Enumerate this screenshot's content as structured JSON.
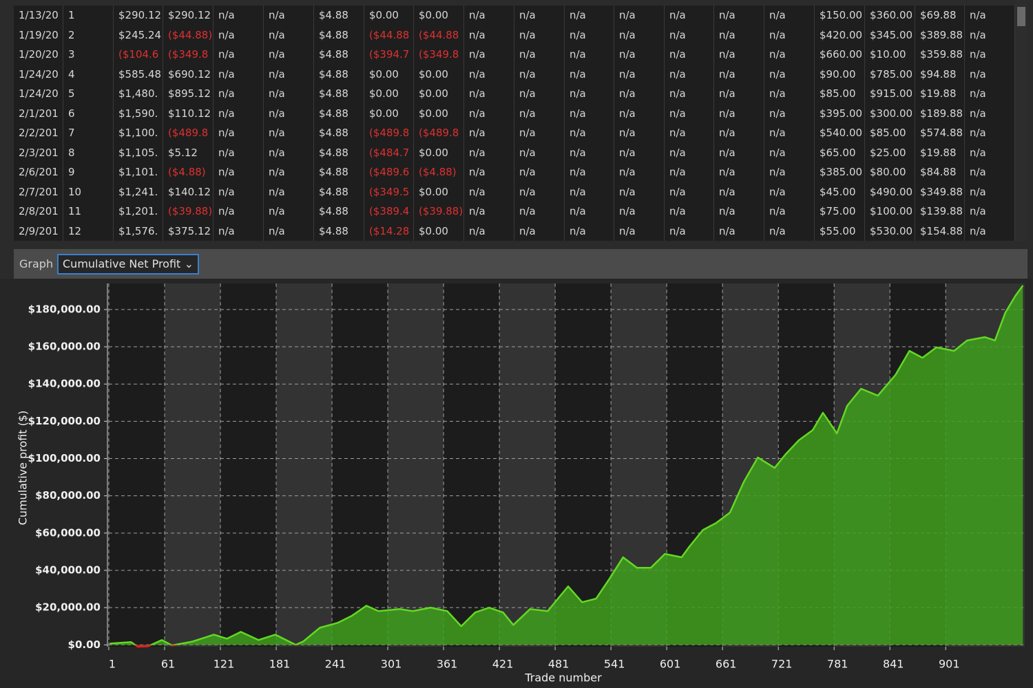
{
  "table": {
    "rows": [
      [
        "1/13/20",
        "1",
        "$290.12",
        "$290.12",
        "n/a",
        "n/a",
        "$4.88",
        "$0.00",
        "$0.00",
        "n/a",
        "n/a",
        "n/a",
        "n/a",
        "n/a",
        "n/a",
        "n/a",
        "$150.00",
        "$360.00",
        "$69.88",
        "n/a"
      ],
      [
        "1/19/20",
        "2",
        "$245.24",
        "($44.88)",
        "n/a",
        "n/a",
        "$4.88",
        "($44.88",
        "($44.88",
        "n/a",
        "n/a",
        "n/a",
        "n/a",
        "n/a",
        "n/a",
        "n/a",
        "$420.00",
        "$345.00",
        "$389.88",
        "n/a"
      ],
      [
        "1/20/20",
        "3",
        "($104.6",
        "($349.8",
        "n/a",
        "n/a",
        "$4.88",
        "($394.7",
        "($349.8",
        "n/a",
        "n/a",
        "n/a",
        "n/a",
        "n/a",
        "n/a",
        "n/a",
        "$660.00",
        "$10.00",
        "$359.88",
        "n/a"
      ],
      [
        "1/24/20",
        "4",
        "$585.48",
        "$690.12",
        "n/a",
        "n/a",
        "$4.88",
        "$0.00",
        "$0.00",
        "n/a",
        "n/a",
        "n/a",
        "n/a",
        "n/a",
        "n/a",
        "n/a",
        "$90.00",
        "$785.00",
        "$94.88",
        "n/a"
      ],
      [
        "1/24/20",
        "5",
        "$1,480.",
        "$895.12",
        "n/a",
        "n/a",
        "$4.88",
        "$0.00",
        "$0.00",
        "n/a",
        "n/a",
        "n/a",
        "n/a",
        "n/a",
        "n/a",
        "n/a",
        "$85.00",
        "$915.00",
        "$19.88",
        "n/a"
      ],
      [
        "2/1/201",
        "6",
        "$1,590.",
        "$110.12",
        "n/a",
        "n/a",
        "$4.88",
        "$0.00",
        "$0.00",
        "n/a",
        "n/a",
        "n/a",
        "n/a",
        "n/a",
        "n/a",
        "n/a",
        "$395.00",
        "$300.00",
        "$189.88",
        "n/a"
      ],
      [
        "2/2/201",
        "7",
        "$1,100.",
        "($489.8",
        "n/a",
        "n/a",
        "$4.88",
        "($489.8",
        "($489.8",
        "n/a",
        "n/a",
        "n/a",
        "n/a",
        "n/a",
        "n/a",
        "n/a",
        "$540.00",
        "$85.00",
        "$574.88",
        "n/a"
      ],
      [
        "2/3/201",
        "8",
        "$1,105.",
        "$5.12",
        "n/a",
        "n/a",
        "$4.88",
        "($484.7",
        "$0.00",
        "n/a",
        "n/a",
        "n/a",
        "n/a",
        "n/a",
        "n/a",
        "n/a",
        "$65.00",
        "$25.00",
        "$19.88",
        "n/a"
      ],
      [
        "2/6/201",
        "9",
        "$1,101.",
        "($4.88)",
        "n/a",
        "n/a",
        "$4.88",
        "($489.6",
        "($4.88)",
        "n/a",
        "n/a",
        "n/a",
        "n/a",
        "n/a",
        "n/a",
        "n/a",
        "$385.00",
        "$80.00",
        "$84.88",
        "n/a"
      ],
      [
        "2/7/201",
        "10",
        "$1,241.",
        "$140.12",
        "n/a",
        "n/a",
        "$4.88",
        "($349.5",
        "$0.00",
        "n/a",
        "n/a",
        "n/a",
        "n/a",
        "n/a",
        "n/a",
        "n/a",
        "$45.00",
        "$490.00",
        "$349.88",
        "n/a"
      ],
      [
        "2/8/201",
        "11",
        "$1,201.",
        "($39.88)",
        "n/a",
        "n/a",
        "$4.88",
        "($389.4",
        "($39.88)",
        "n/a",
        "n/a",
        "n/a",
        "n/a",
        "n/a",
        "n/a",
        "n/a",
        "$75.00",
        "$100.00",
        "$139.88",
        "n/a"
      ],
      [
        "2/9/201",
        "12",
        "$1,576.",
        "$375.12",
        "n/a",
        "n/a",
        "$4.88",
        "($14.28",
        "$0.00",
        "n/a",
        "n/a",
        "n/a",
        "n/a",
        "n/a",
        "n/a",
        "n/a",
        "$55.00",
        "$530.00",
        "$154.88",
        "n/a"
      ]
    ]
  },
  "toolbar": {
    "label": "Graph",
    "dropdown": "Cumulative Net Profit"
  },
  "chart_data": {
    "type": "area",
    "x_label": "Trade number",
    "y_label": "Cumulative profit ($)",
    "color": "#63d923",
    "fill": "#3f9e1c",
    "negative_color": "#e02020",
    "grid": true,
    "alternate_bands": true,
    "x": [
      2,
      25,
      32,
      43,
      58,
      69,
      91,
      114,
      128,
      143,
      162,
      180,
      202,
      210,
      228,
      247,
      262,
      278,
      291,
      314,
      328,
      347,
      365,
      380,
      395,
      410,
      425,
      436,
      454,
      473,
      484,
      495,
      510,
      525,
      540,
      554,
      569,
      584,
      599,
      617,
      625,
      640,
      654,
      669,
      684,
      699,
      717,
      729,
      743,
      758,
      769,
      784,
      795,
      810,
      828,
      847,
      862,
      876,
      891,
      910,
      924,
      943,
      954,
      965,
      976,
      984
    ],
    "values": [
      700,
      1500,
      -1000,
      -800,
      2600,
      -300,
      1800,
      5500,
      3300,
      7000,
      2600,
      5500,
      0,
      1800,
      9200,
      11800,
      15500,
      21000,
      18100,
      19200,
      18100,
      20000,
      18100,
      10000,
      17400,
      20000,
      17400,
      10700,
      19200,
      18100,
      24800,
      31400,
      22900,
      24800,
      35900,
      47000,
      41400,
      41400,
      48800,
      47000,
      52500,
      61700,
      65400,
      71000,
      87600,
      100600,
      95000,
      102400,
      109800,
      115300,
      124600,
      113500,
      128300,
      137500,
      133800,
      144900,
      157800,
      154100,
      159700,
      157800,
      163400,
      165200,
      163400,
      178200,
      187400,
      192900
    ],
    "xlim": [
      1,
      986
    ],
    "xticks": [
      1,
      61,
      121,
      181,
      241,
      301,
      361,
      421,
      481,
      541,
      601,
      661,
      721,
      781,
      841,
      901
    ],
    "ylim": [
      -1000,
      194000
    ],
    "yticks": [
      {
        "value": 0,
        "label": "$0.00"
      },
      {
        "value": 20000,
        "label": "$20,000.00"
      },
      {
        "value": 40000,
        "label": "$40,000.00"
      },
      {
        "value": 60000,
        "label": "$60,000.00"
      },
      {
        "value": 80000,
        "label": "$80,000.00"
      },
      {
        "value": 100000,
        "label": "$100,000.00"
      },
      {
        "value": 120000,
        "label": "$120,000.00"
      },
      {
        "value": 140000,
        "label": "$140,000.00"
      },
      {
        "value": 160000,
        "label": "$160,000.00"
      },
      {
        "value": 180000,
        "label": "$180,000.00"
      }
    ]
  }
}
